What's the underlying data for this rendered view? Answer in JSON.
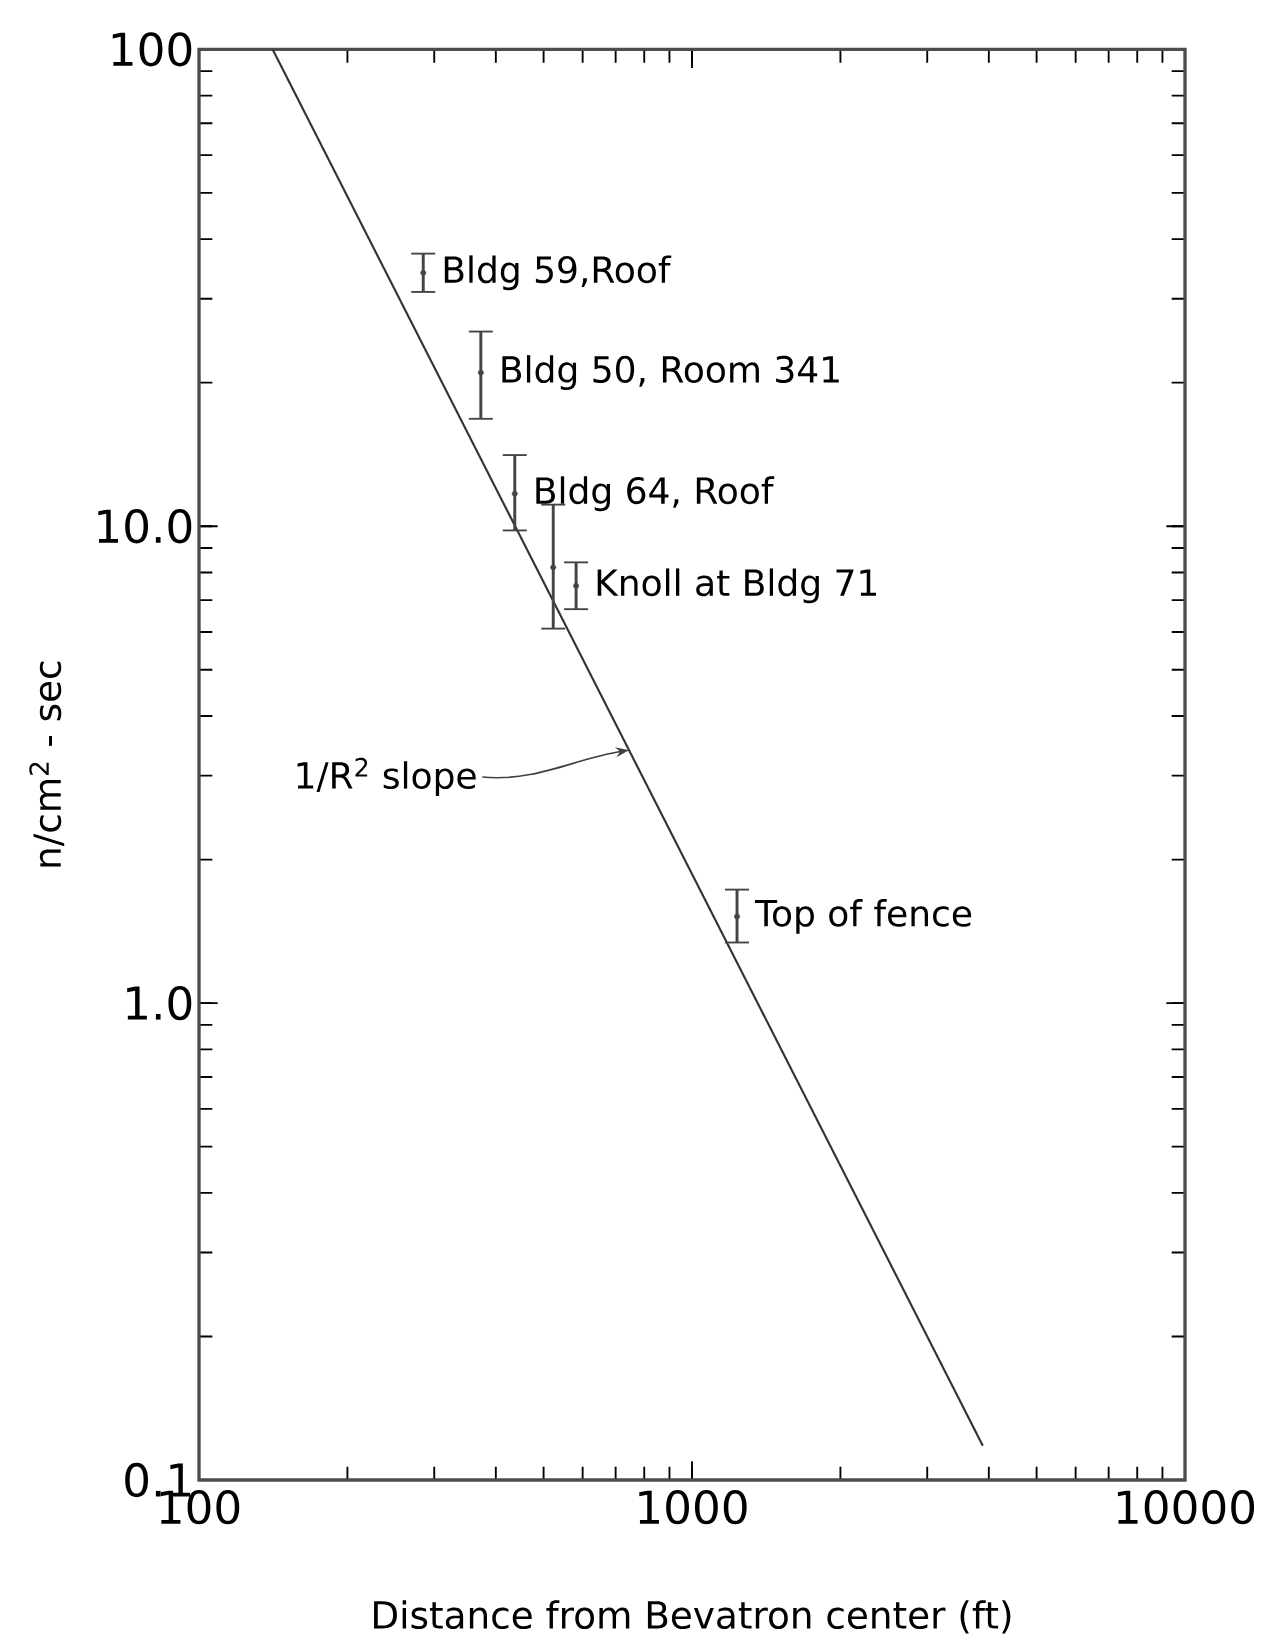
{
  "chart_data": {
    "type": "line",
    "xlabel": "Distance from Bevatron center (ft)",
    "ylabel": "n/cm$^{2}$ - sec",
    "log": "xy",
    "xlim": [
      100,
      10000
    ],
    "xticks": [
      100,
      1000,
      10000
    ],
    "ylim": [
      0.1,
      100
    ],
    "yticks": [
      {
        "value": 0.1,
        "label": "0.1"
      },
      {
        "value": 1,
        "label": "1.0"
      },
      {
        "value": 10,
        "label": "10.0"
      },
      {
        "value": 100,
        "label": "100"
      }
    ],
    "series": [
      {
        "color": "#333333",
        "x": [
          141,
          3890
        ],
        "values": [
          100,
          0.118
        ]
      },
      {
        "type": "scatter",
        "color": "#444444",
        "x": [
          285,
          373,
          437,
          523,
          582,
          1234
        ],
        "values": [
          34,
          21,
          11.7,
          8.2,
          7.5,
          1.52
        ],
        "errors": [
          [
            31,
            37.3
          ],
          [
            16.8,
            25.6
          ],
          [
            9.8,
            14.1
          ],
          [
            6.1,
            11.1
          ],
          [
            6.7,
            8.4
          ],
          [
            1.34,
            1.73
          ]
        ]
      }
    ],
    "annotations": [
      {
        "text": "Bldg 59,Roof",
        "x": 285,
        "y": 34
      },
      {
        "text": "Bldg 50, Room 341",
        "x": 373,
        "y": 21
      },
      {
        "text": "Bldg 64, Roof",
        "x": 437,
        "y": 11.7
      },
      {
        "text": "Knoll at Bldg 71",
        "x": 582,
        "y": 7.5
      },
      {
        "text": "Top of fence",
        "x": 1234,
        "y": 1.52
      },
      {
        "text": "1/R$^{2}$ slope",
        "x": 745,
        "y": 3.39
      }
    ]
  }
}
